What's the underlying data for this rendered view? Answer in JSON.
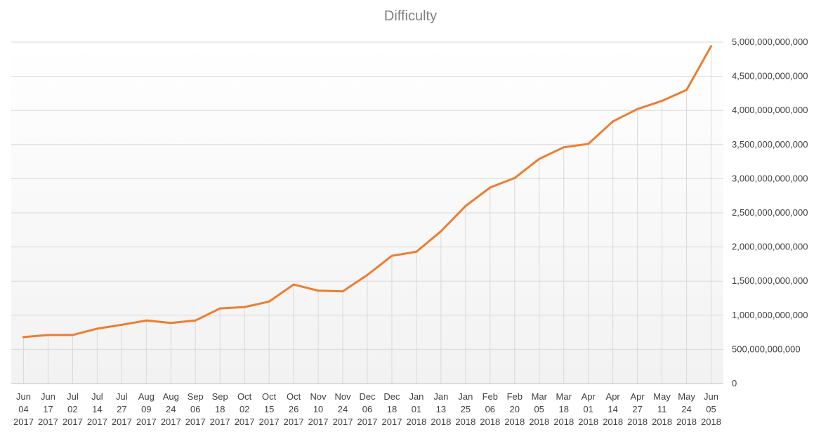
{
  "chart_data": {
    "type": "line",
    "title": "Difficulty",
    "xlabel": "",
    "ylabel": "",
    "grid": true,
    "ylim": [
      0,
      5000000000000
    ],
    "yticks": [
      0,
      500000000000,
      1000000000000,
      1500000000000,
      2000000000000,
      2500000000000,
      3000000000000,
      3500000000000,
      4000000000000,
      4500000000000,
      5000000000000
    ],
    "ytick_labels": [
      "0",
      "500,000,000,000",
      "1,000,000,000,000",
      "1,500,000,000,000",
      "2,000,000,000,000",
      "2,500,000,000,000",
      "3,000,000,000,000",
      "3,500,000,000,000",
      "4,000,000,000,000",
      "4,500,000,000,000",
      "5,000,000,000,000"
    ],
    "categories": [
      [
        "Jun",
        "04",
        "2017"
      ],
      [
        "Jun",
        "17",
        "2017"
      ],
      [
        "Jul",
        "02",
        "2017"
      ],
      [
        "Jul",
        "14",
        "2017"
      ],
      [
        "Jul",
        "27",
        "2017"
      ],
      [
        "Aug",
        "09",
        "2017"
      ],
      [
        "Aug",
        "24",
        "2017"
      ],
      [
        "Sep",
        "06",
        "2017"
      ],
      [
        "Sep",
        "18",
        "2017"
      ],
      [
        "Oct",
        "02",
        "2017"
      ],
      [
        "Oct",
        "15",
        "2017"
      ],
      [
        "Oct",
        "26",
        "2017"
      ],
      [
        "Nov",
        "10",
        "2017"
      ],
      [
        "Nov",
        "24",
        "2017"
      ],
      [
        "Dec",
        "06",
        "2017"
      ],
      [
        "Dec",
        "18",
        "2017"
      ],
      [
        "Jan",
        "01",
        "2018"
      ],
      [
        "Jan",
        "13",
        "2018"
      ],
      [
        "Jan",
        "25",
        "2018"
      ],
      [
        "Feb",
        "06",
        "2018"
      ],
      [
        "Feb",
        "20",
        "2018"
      ],
      [
        "Mar",
        "05",
        "2018"
      ],
      [
        "Mar",
        "18",
        "2018"
      ],
      [
        "Apr",
        "01",
        "2018"
      ],
      [
        "Apr",
        "14",
        "2018"
      ],
      [
        "Apr",
        "27",
        "2018"
      ],
      [
        "May",
        "11",
        "2018"
      ],
      [
        "May",
        "24",
        "2018"
      ],
      [
        "Jun",
        "05",
        "2018"
      ]
    ],
    "series": [
      {
        "color": "#ed7d31",
        "values": [
          680000000000,
          711000000000,
          711000000000,
          804000000000,
          860000000000,
          923000000000,
          888000000000,
          923000000000,
          1100000000000,
          1120000000000,
          1200000000000,
          1450000000000,
          1360000000000,
          1350000000000,
          1590000000000,
          1870000000000,
          1930000000000,
          2230000000000,
          2600000000000,
          2870000000000,
          3010000000000,
          3290000000000,
          3460000000000,
          3510000000000,
          3840000000000,
          4020000000000,
          4140000000000,
          4300000000000,
          4940000000000
        ]
      }
    ]
  }
}
